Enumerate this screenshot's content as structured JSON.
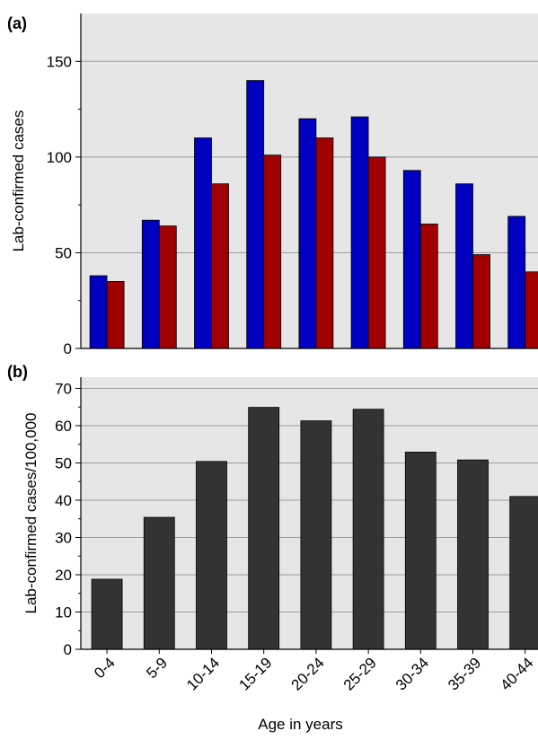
{
  "chart_data": [
    {
      "type": "bar",
      "panel_label": "(a)",
      "categories": [
        "0-4",
        "5-9",
        "10-14",
        "15-19",
        "20-24",
        "25-29",
        "30-34",
        "35-39",
        "40-44"
      ],
      "series": [
        {
          "color": "#0000c0",
          "values": [
            38,
            67,
            110,
            140,
            120,
            121,
            93,
            86,
            69
          ]
        },
        {
          "color": "#a00000",
          "values": [
            35,
            64,
            86,
            101,
            110,
            100,
            65,
            49,
            40
          ]
        }
      ],
      "ylabel": "Lab-confirmed cases",
      "ylim": [
        0,
        175
      ],
      "yticks": [
        0,
        50,
        100,
        150
      ],
      "grid": true,
      "background": "#e6e6e6"
    },
    {
      "type": "bar",
      "panel_label": "(b)",
      "categories": [
        "0-4",
        "5-9",
        "10-14",
        "15-19",
        "20-24",
        "25-29",
        "30-34",
        "35-39",
        "40-44"
      ],
      "series": [
        {
          "color": "#333333",
          "values": [
            18.8,
            35.4,
            50.4,
            64.9,
            61.3,
            64.4,
            52.9,
            50.8,
            41.0
          ]
        }
      ],
      "ylabel": "Lab-confirmed cases/100,000",
      "xlabel": "Age in years",
      "ylim": [
        0,
        73
      ],
      "yticks": [
        0,
        10,
        20,
        30,
        40,
        50,
        60,
        70
      ],
      "grid": true,
      "background": "#e6e6e6"
    }
  ]
}
